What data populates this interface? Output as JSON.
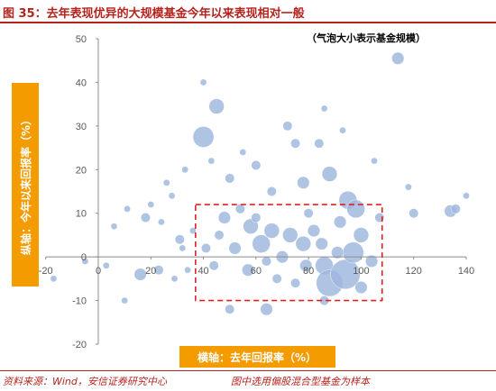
{
  "title": "图 35：去年表现优异的大规模基金今年以来表现相对一般",
  "footer": {
    "source": "资料来源：Wind，安信证券研究中心",
    "note": "图中选用偏股混合型基金为样本"
  },
  "colors": {
    "title": "#b5231d",
    "bubble": "#9db7dd",
    "label_box": "#f49b00",
    "highlight_rect": "#e02020"
  },
  "chart_data": {
    "type": "scatter",
    "title": "",
    "annotation": "（气泡大小表示基金规模）",
    "xlabel": "横轴：去年回报率（%）",
    "ylabel": "纵轴：今年以来回报率（%）",
    "xlim": [
      -20,
      140
    ],
    "ylim": [
      -20,
      50
    ],
    "x_ticks": [
      -20,
      0,
      20,
      40,
      60,
      80,
      100,
      120,
      140
    ],
    "y_ticks": [
      -20,
      -10,
      0,
      10,
      20,
      30,
      40,
      50
    ],
    "grid": false,
    "highlight_region": {
      "x": [
        37,
        108
      ],
      "y": [
        -10,
        12
      ]
    },
    "bubble_size_meaning": "fund size",
    "points": [
      {
        "x": 40,
        "y": 40,
        "size": 1
      },
      {
        "x": 114,
        "y": 45.5,
        "size": 3
      },
      {
        "x": 40,
        "y": 27.5,
        "size": 6
      },
      {
        "x": 45,
        "y": 34.5,
        "size": 4
      },
      {
        "x": 86,
        "y": 34,
        "size": 1
      },
      {
        "x": 72,
        "y": 30,
        "size": 2
      },
      {
        "x": 75,
        "y": 26,
        "size": 2
      },
      {
        "x": 84,
        "y": 26,
        "size": 2
      },
      {
        "x": 93,
        "y": 29,
        "size": 1
      },
      {
        "x": 88,
        "y": 19,
        "size": 4
      },
      {
        "x": 78,
        "y": 17,
        "size": 3
      },
      {
        "x": 95,
        "y": 13,
        "size": 5
      },
      {
        "x": 98,
        "y": 11,
        "size": 5
      },
      {
        "x": 105,
        "y": 22,
        "size": 1
      },
      {
        "x": 118,
        "y": 16,
        "size": 1
      },
      {
        "x": 120,
        "y": 10,
        "size": 2
      },
      {
        "x": 134,
        "y": 10.5,
        "size": 3
      },
      {
        "x": 136,
        "y": 11,
        "size": 2
      },
      {
        "x": 140,
        "y": 14,
        "size": 1
      },
      {
        "x": 50,
        "y": 18,
        "size": 2
      },
      {
        "x": 60,
        "y": 21,
        "size": 2
      },
      {
        "x": 66,
        "y": 15,
        "size": 2
      },
      {
        "x": 55,
        "y": 24,
        "size": 1
      },
      {
        "x": 43,
        "y": 22,
        "size": 1
      },
      {
        "x": 33,
        "y": 20,
        "size": 1
      },
      {
        "x": 26,
        "y": 17,
        "size": 1
      },
      {
        "x": 28,
        "y": 14,
        "size": 1
      },
      {
        "x": 11,
        "y": 11,
        "size": 1
      },
      {
        "x": 20,
        "y": 12,
        "size": 1
      },
      {
        "x": 18,
        "y": 9,
        "size": 2
      },
      {
        "x": 24,
        "y": 8,
        "size": 1
      },
      {
        "x": 6,
        "y": 7,
        "size": 1
      },
      {
        "x": 31,
        "y": 4,
        "size": 2
      },
      {
        "x": 36,
        "y": 6,
        "size": 1
      },
      {
        "x": 32,
        "y": 2,
        "size": 1
      },
      {
        "x": 3,
        "y": -2,
        "size": 1
      },
      {
        "x": -5,
        "y": -1,
        "size": 1
      },
      {
        "x": -17,
        "y": -5,
        "size": 1
      },
      {
        "x": 16,
        "y": -4,
        "size": 3
      },
      {
        "x": 23,
        "y": -3,
        "size": 2
      },
      {
        "x": 29,
        "y": -5,
        "size": 1
      },
      {
        "x": 34,
        "y": -3,
        "size": 1
      },
      {
        "x": 10,
        "y": -10,
        "size": 1
      },
      {
        "x": 50,
        "y": -12,
        "size": 2
      },
      {
        "x": 64,
        "y": -12,
        "size": 3
      },
      {
        "x": 86,
        "y": -10,
        "size": 2
      },
      {
        "x": 48,
        "y": 9,
        "size": 3
      },
      {
        "x": 52,
        "y": 2,
        "size": 3
      },
      {
        "x": 58,
        "y": 7,
        "size": 4
      },
      {
        "x": 62,
        "y": 3,
        "size": 5
      },
      {
        "x": 66,
        "y": 6,
        "size": 4
      },
      {
        "x": 70,
        "y": 0,
        "size": 3
      },
      {
        "x": 73,
        "y": 5,
        "size": 4
      },
      {
        "x": 78,
        "y": 3,
        "size": 4
      },
      {
        "x": 82,
        "y": 6,
        "size": 3
      },
      {
        "x": 86,
        "y": -2,
        "size": 5
      },
      {
        "x": 88,
        "y": -6,
        "size": 8
      },
      {
        "x": 94,
        "y": -4,
        "size": 9
      },
      {
        "x": 97,
        "y": 1,
        "size": 6
      },
      {
        "x": 100,
        "y": 5,
        "size": 4
      },
      {
        "x": 92,
        "y": 8,
        "size": 3
      },
      {
        "x": 104,
        "y": -1,
        "size": 3
      },
      {
        "x": 57,
        "y": -3,
        "size": 3
      },
      {
        "x": 44,
        "y": -2,
        "size": 2
      },
      {
        "x": 41,
        "y": 2,
        "size": 2
      },
      {
        "x": 46,
        "y": 5,
        "size": 2
      },
      {
        "x": 75,
        "y": -6,
        "size": 2
      },
      {
        "x": 68,
        "y": -5,
        "size": 2
      },
      {
        "x": 80,
        "y": 10,
        "size": 2
      },
      {
        "x": 54,
        "y": 11,
        "size": 2
      },
      {
        "x": 60,
        "y": 9,
        "size": 2
      },
      {
        "x": 85,
        "y": 3,
        "size": 3
      },
      {
        "x": 79,
        "y": -2,
        "size": 3
      },
      {
        "x": 64,
        "y": -1,
        "size": 2
      },
      {
        "x": 91,
        "y": 1,
        "size": 3
      },
      {
        "x": 100,
        "y": -7,
        "size": 3
      },
      {
        "x": 107,
        "y": 9,
        "size": 2
      }
    ]
  }
}
